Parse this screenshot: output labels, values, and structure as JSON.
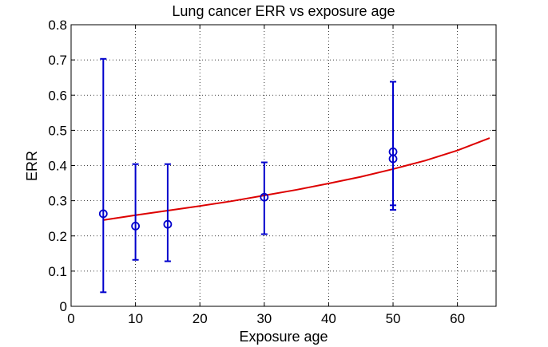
{
  "chart_data": {
    "type": "scatter",
    "title": "Lung cancer ERR vs exposure age",
    "xlabel": "Exposure age",
    "ylabel": "ERR",
    "xlim": [
      0,
      66
    ],
    "ylim": [
      0,
      0.8
    ],
    "xticks": [
      0,
      10,
      20,
      30,
      40,
      50,
      60
    ],
    "yticks": [
      0,
      0.1,
      0.2,
      0.3,
      0.4,
      0.5,
      0.6,
      0.7,
      0.8
    ],
    "xtick_labels": [
      "0",
      "10",
      "20",
      "30",
      "40",
      "50",
      "60"
    ],
    "ytick_labels": [
      "0",
      "0.1",
      "0.2",
      "0.3",
      "0.4",
      "0.5",
      "0.6",
      "0.7",
      "0.8"
    ],
    "grid": true,
    "legend": "none",
    "series": [
      {
        "kind": "errorbar",
        "color": "#0000cc",
        "marker": "circle",
        "points": [
          {
            "x": 5,
            "y": 0.263,
            "low": 0.04,
            "high": 0.703
          },
          {
            "x": 10,
            "y": 0.228,
            "low": 0.132,
            "high": 0.404
          },
          {
            "x": 15,
            "y": 0.233,
            "low": 0.128,
            "high": 0.404
          },
          {
            "x": 30,
            "y": 0.31,
            "low": 0.205,
            "high": 0.409
          },
          {
            "x": 50,
            "y": 0.439,
            "low": 0.287,
            "high": 0.638
          },
          {
            "x": 50,
            "y": 0.419,
            "low": 0.274,
            "high": 0.638
          }
        ]
      },
      {
        "kind": "fit-line",
        "color": "#dd0000",
        "x": [
          5,
          10,
          15,
          20,
          25,
          30,
          35,
          40,
          45,
          50,
          55,
          60,
          65
        ],
        "y": [
          0.245,
          0.259,
          0.272,
          0.285,
          0.299,
          0.315,
          0.331,
          0.349,
          0.368,
          0.39,
          0.414,
          0.443,
          0.478
        ]
      }
    ]
  }
}
